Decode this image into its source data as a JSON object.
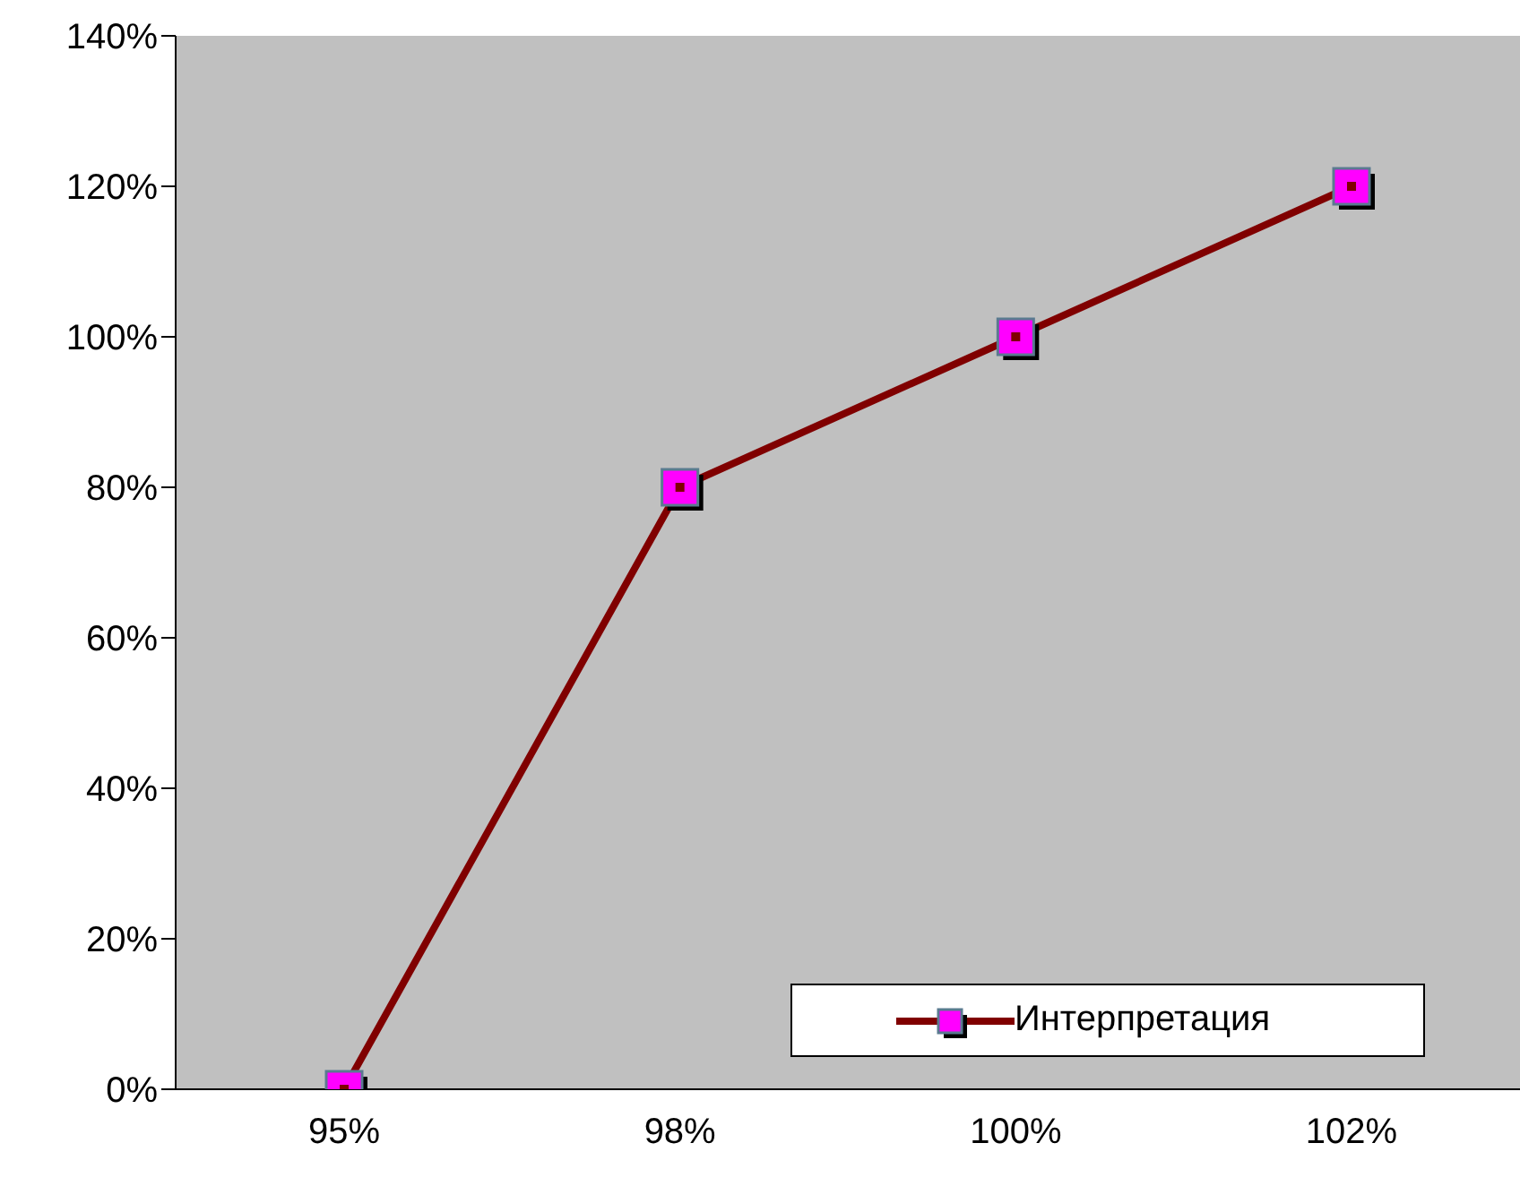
{
  "chart_data": {
    "type": "line",
    "categories": [
      "95%",
      "98%",
      "100%",
      "102%"
    ],
    "series": [
      {
        "name": "Интерпретация",
        "color": "#800000",
        "values": [
          0,
          80,
          100,
          120
        ]
      }
    ],
    "ylim": [
      0,
      140
    ],
    "yticks": [
      {
        "value": 0,
        "label": "0%"
      },
      {
        "value": 20,
        "label": "20%"
      },
      {
        "value": 40,
        "label": "40%"
      },
      {
        "value": 60,
        "label": "60%"
      },
      {
        "value": 80,
        "label": "80%"
      },
      {
        "value": 100,
        "label": "100%"
      },
      {
        "value": 120,
        "label": "120%"
      },
      {
        "value": 140,
        "label": "140%"
      }
    ],
    "marker": "square",
    "grid": false,
    "legend": "bottom right"
  }
}
